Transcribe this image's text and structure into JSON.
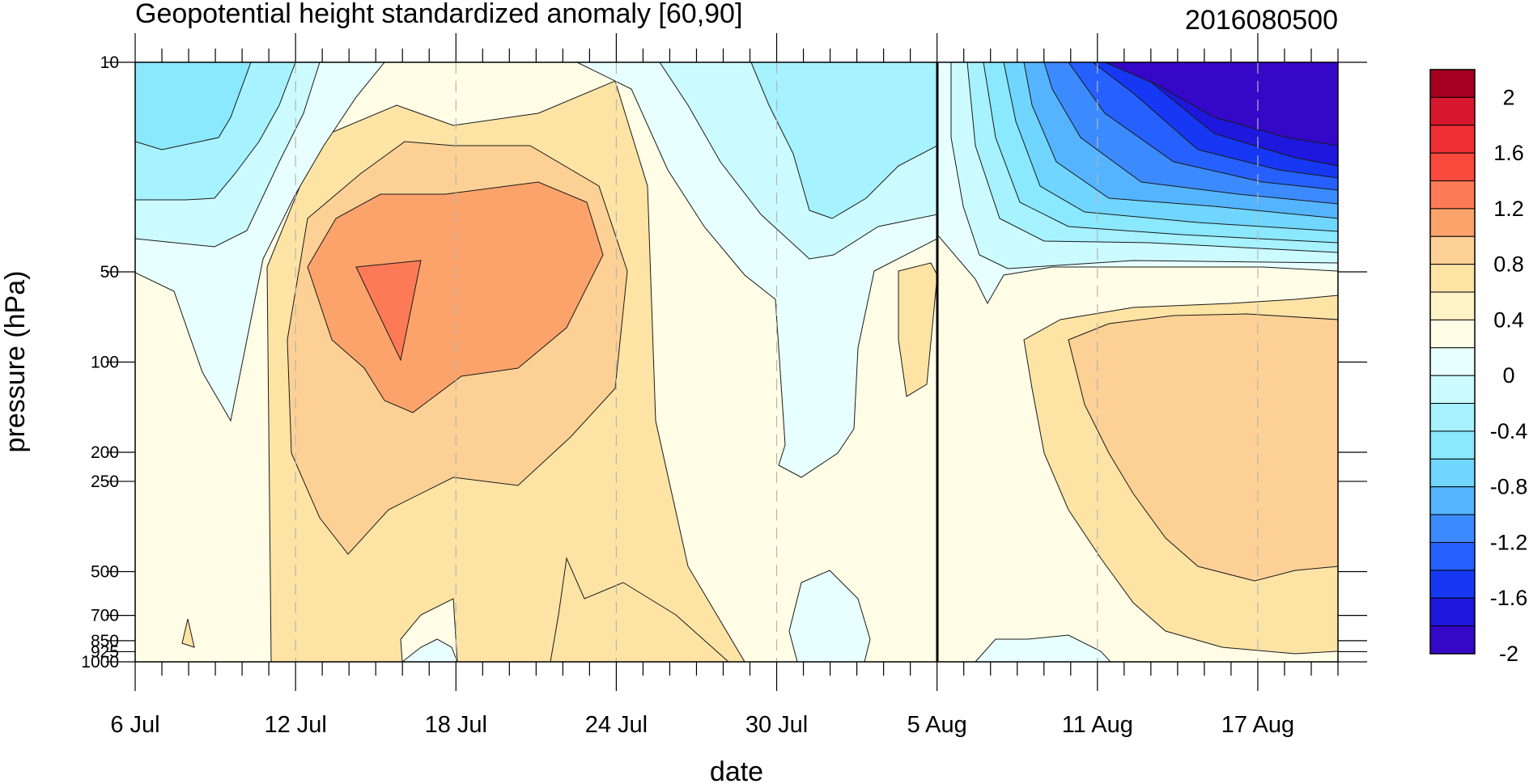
{
  "chart_data": {
    "type": "heatmap",
    "title": "Geopotential height standardized anomaly [60,90]",
    "date_label": "2016080500",
    "xlabel": "date",
    "ylabel": "pressure (hPa)",
    "x_ticks": [
      {
        "day": 0,
        "label": "6 Jul"
      },
      {
        "day": 6,
        "label": "12 Jul"
      },
      {
        "day": 12,
        "label": "18 Jul"
      },
      {
        "day": 18,
        "label": "24 Jul"
      },
      {
        "day": 24,
        "label": "30 Jul"
      },
      {
        "day": 30,
        "label": "5 Aug"
      },
      {
        "day": 36,
        "label": "11 Aug"
      },
      {
        "day": 42,
        "label": "17 Aug"
      }
    ],
    "x_range_days": [
      0,
      45
    ],
    "current_day": 30,
    "y_ticks": [
      {
        "p": 10,
        "label": "10"
      },
      {
        "p": 50,
        "label": "50"
      },
      {
        "p": 100,
        "label": "100"
      },
      {
        "p": 200,
        "label": "200"
      },
      {
        "p": 250,
        "label": "250"
      },
      {
        "p": 500,
        "label": "500"
      },
      {
        "p": 700,
        "label": "700"
      },
      {
        "p": 850,
        "label": "850"
      },
      {
        "p": 925,
        "label": "925"
      },
      {
        "p": 1000,
        "label": "1000"
      }
    ],
    "y_scale": "log-pressure",
    "colorbar": {
      "labels": [
        "2",
        "1.6",
        "1.2",
        "0.8",
        "0.4",
        "0",
        "-0.4",
        "-0.8",
        "-1.2",
        "-1.6",
        "-2"
      ],
      "colors": [
        "#a50021",
        "#d7172e",
        "#ef2f35",
        "#fa4a3c",
        "#fc7b56",
        "#fca36b",
        "#fdd195",
        "#fde4a5",
        "#fef3c7",
        "#fffde6",
        "#e8ffff",
        "#ccfbff",
        "#a6f2ff",
        "#8ae8ff",
        "#70d6ff",
        "#55b4ff",
        "#3b8bff",
        "#2660ff",
        "#1638f5",
        "#1e17dd",
        "#3507c6"
      ]
    },
    "levels": [
      -2,
      -1.8,
      -1.6,
      -1.4,
      -1.2,
      -1,
      -0.8,
      -0.6,
      -0.4,
      -0.2,
      0,
      0.2,
      0.4,
      0.6,
      0.8,
      1,
      1.2,
      1.4,
      1.6,
      1.8,
      2
    ]
  }
}
